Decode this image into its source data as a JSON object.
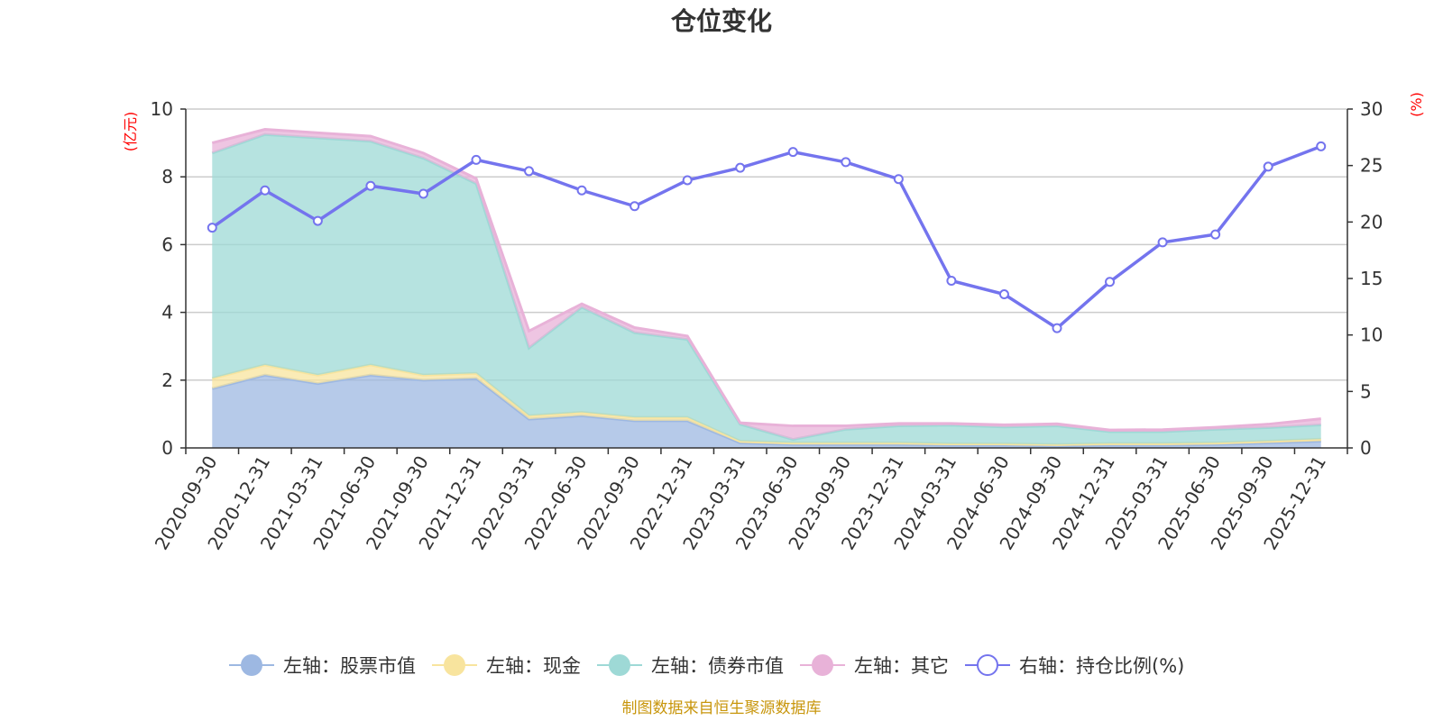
{
  "chart_data": {
    "type": "area",
    "title": "仓位变化",
    "left_axis": {
      "unit": "(亿元)",
      "range": [
        0,
        10
      ],
      "ticks": [
        0,
        2,
        4,
        6,
        8,
        10
      ]
    },
    "right_axis": {
      "unit": "(%)",
      "range": [
        0,
        30
      ],
      "ticks": [
        0,
        5,
        10,
        15,
        20,
        25,
        30
      ]
    },
    "categories": [
      "2020-09-30",
      "2020-12-31",
      "2021-03-31",
      "2021-06-30",
      "2021-09-30",
      "2021-12-31",
      "2022-03-31",
      "2022-06-30",
      "2022-09-30",
      "2022-12-31",
      "2023-03-31",
      "2023-06-30",
      "2023-09-30",
      "2023-12-31",
      "2024-03-31",
      "2024-06-30",
      "2024-09-30",
      "2024-12-31",
      "2025-03-31",
      "2025-06-30",
      "2025-09-30",
      "2025-12-31"
    ],
    "series": [
      {
        "name": "左轴：股票市值",
        "axis": "left",
        "stack": true,
        "color": "#9db8e2",
        "values": [
          1.75,
          2.15,
          1.9,
          2.15,
          2.0,
          2.05,
          0.85,
          0.95,
          0.8,
          0.8,
          0.15,
          0.1,
          0.1,
          0.1,
          0.08,
          0.08,
          0.06,
          0.08,
          0.08,
          0.1,
          0.15,
          0.2
        ]
      },
      {
        "name": "左轴：现金",
        "axis": "left",
        "stack": true,
        "color": "#f8e49e",
        "values": [
          0.3,
          0.3,
          0.25,
          0.3,
          0.15,
          0.15,
          0.1,
          0.1,
          0.1,
          0.1,
          0.05,
          0.05,
          0.05,
          0.05,
          0.04,
          0.04,
          0.04,
          0.05,
          0.05,
          0.05,
          0.05,
          0.06
        ]
      },
      {
        "name": "左轴：债券市值",
        "axis": "left",
        "stack": true,
        "color": "#9ed9d6",
        "values": [
          6.65,
          6.8,
          7.0,
          6.6,
          6.4,
          5.6,
          2.0,
          3.1,
          2.5,
          2.3,
          0.5,
          0.1,
          0.4,
          0.5,
          0.55,
          0.5,
          0.55,
          0.35,
          0.35,
          0.4,
          0.4,
          0.42
        ]
      },
      {
        "name": "左轴：其它",
        "axis": "left",
        "stack": true,
        "color": "#e8b2d8",
        "values": [
          0.3,
          0.15,
          0.15,
          0.15,
          0.15,
          0.15,
          0.5,
          0.1,
          0.15,
          0.1,
          0.04,
          0.4,
          0.1,
          0.07,
          0.05,
          0.06,
          0.06,
          0.05,
          0.06,
          0.06,
          0.1,
          0.18
        ]
      },
      {
        "name": "右轴：持仓比例(%)",
        "axis": "right",
        "type": "line",
        "color": "#7474ee",
        "values": [
          19.5,
          22.8,
          20.1,
          23.2,
          22.5,
          25.5,
          24.5,
          22.8,
          21.4,
          23.7,
          24.8,
          26.2,
          25.3,
          23.8,
          14.8,
          13.6,
          10.6,
          14.7,
          18.2,
          18.9,
          24.9,
          26.7
        ]
      }
    ],
    "legend_position": "bottom",
    "grid": true
  },
  "source_note": "制图数据来自恒生聚源数据库"
}
